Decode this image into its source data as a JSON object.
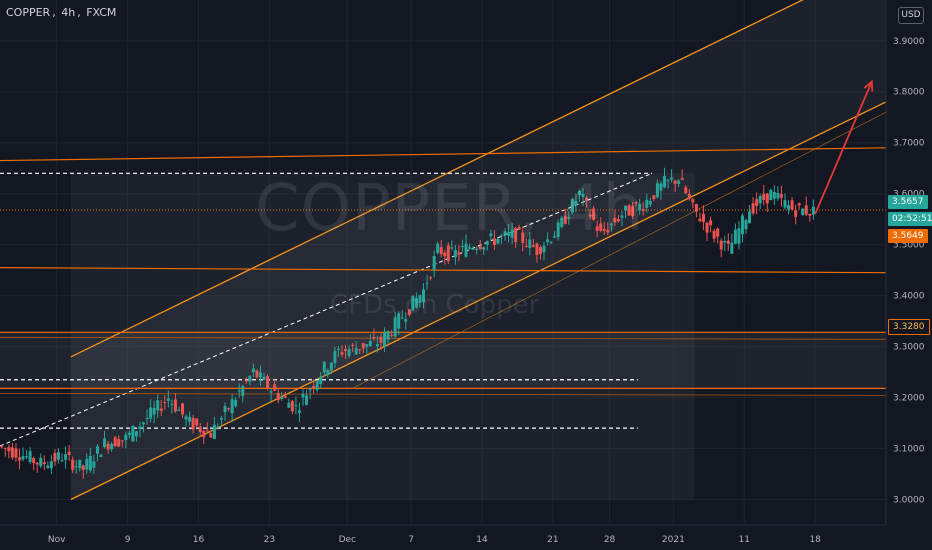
{
  "header": {
    "symbol": "COPPER",
    "interval": "4h",
    "exchange": "FXCM"
  },
  "watermark": {
    "main": "COPPER, 4h",
    "sub": "CFDs on Copper"
  },
  "currency_label": "USD",
  "price_tags": {
    "last": "3.5657",
    "countdown": "02:52:51",
    "orange": "3.5649",
    "level": "3.3280"
  },
  "colors": {
    "background": "#131722",
    "up_candle": "#26a69a",
    "down_candle": "#ef5350",
    "channel": "#f7931a",
    "support_resistance": "#ef6c00",
    "arrow": "#e53935",
    "dashed": "#ffffff",
    "last_price_tag": "#26a69a",
    "orange_tag": "#ef6c00"
  },
  "chart_data": {
    "type": "candlestick",
    "ylim": [
      2.95,
      3.98
    ],
    "y_ticks": [
      "3.9000",
      "3.8000",
      "3.7000",
      "3.6000",
      "3.5000",
      "3.4000",
      "3.3000",
      "3.2000",
      "3.1000",
      "3.0000"
    ],
    "x_ticks": [
      "Nov",
      "9",
      "16",
      "23",
      "Dec",
      "7",
      "14",
      "21",
      "28",
      "2021",
      "11",
      "18"
    ],
    "series": [
      {
        "x": 0,
        "y": 3.105
      },
      {
        "x": 3,
        "y": 3.09
      },
      {
        "x": 6,
        "y": 3.07
      },
      {
        "x": 9,
        "y": 3.085
      },
      {
        "x": 12,
        "y": 3.06
      },
      {
        "x": 15,
        "y": 3.11
      },
      {
        "x": 18,
        "y": 3.12
      },
      {
        "x": 21,
        "y": 3.16
      },
      {
        "x": 24,
        "y": 3.2
      },
      {
        "x": 27,
        "y": 3.15
      },
      {
        "x": 30,
        "y": 3.13
      },
      {
        "x": 33,
        "y": 3.19
      },
      {
        "x": 36,
        "y": 3.25
      },
      {
        "x": 39,
        "y": 3.21
      },
      {
        "x": 42,
        "y": 3.18
      },
      {
        "x": 45,
        "y": 3.24
      },
      {
        "x": 48,
        "y": 3.29
      },
      {
        "x": 51,
        "y": 3.3
      },
      {
        "x": 54,
        "y": 3.31
      },
      {
        "x": 57,
        "y": 3.36
      },
      {
        "x": 60,
        "y": 3.41
      },
      {
        "x": 62,
        "y": 3.49
      },
      {
        "x": 64,
        "y": 3.48
      },
      {
        "x": 67,
        "y": 3.5
      },
      {
        "x": 70,
        "y": 3.51
      },
      {
        "x": 73,
        "y": 3.52
      },
      {
        "x": 76,
        "y": 3.49
      },
      {
        "x": 79,
        "y": 3.53
      },
      {
        "x": 82,
        "y": 3.6
      },
      {
        "x": 85,
        "y": 3.52
      },
      {
        "x": 88,
        "y": 3.56
      },
      {
        "x": 91,
        "y": 3.58
      },
      {
        "x": 94,
        "y": 3.62
      },
      {
        "x": 96,
        "y": 3.63
      },
      {
        "x": 98,
        "y": 3.57
      },
      {
        "x": 101,
        "y": 3.52
      },
      {
        "x": 103,
        "y": 3.49
      },
      {
        "x": 106,
        "y": 3.57
      },
      {
        "x": 109,
        "y": 3.6
      },
      {
        "x": 112,
        "y": 3.57
      },
      {
        "x": 115,
        "y": 3.565
      }
    ],
    "annotations": [
      {
        "type": "hline",
        "y": 3.64,
        "style": "dashed"
      },
      {
        "type": "hline",
        "y": 3.235,
        "style": "dashed"
      },
      {
        "type": "hline",
        "y": 3.14,
        "style": "dashed"
      },
      {
        "type": "hline",
        "y": 3.328,
        "style": "solid-orange"
      },
      {
        "type": "hline",
        "y": 3.218,
        "style": "solid-orange"
      },
      {
        "type": "trendline",
        "from": [
          0,
          3.665
        ],
        "to": [
          125,
          3.69
        ]
      },
      {
        "type": "trendline",
        "from": [
          0,
          3.455
        ],
        "to": [
          125,
          3.445
        ]
      },
      {
        "type": "channel",
        "lower_from": [
          10,
          3.0
        ],
        "lower_to": [
          125,
          3.78
        ],
        "width": 0.28
      },
      {
        "type": "arrow",
        "from": [
          115,
          3.56
        ],
        "to": [
          123,
          3.82
        ]
      }
    ]
  }
}
